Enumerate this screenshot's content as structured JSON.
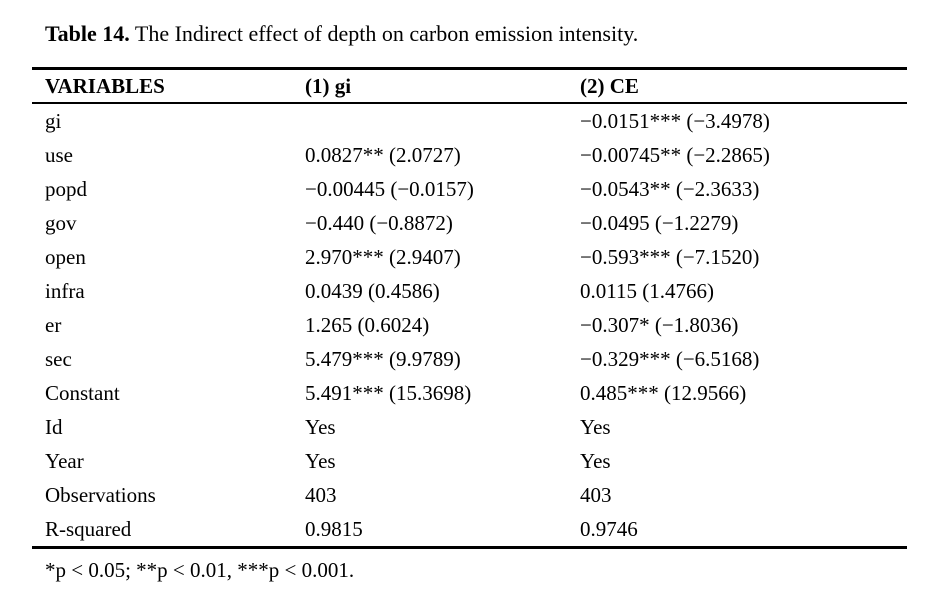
{
  "page": {
    "background_color": "#ffffff",
    "text_color": "#000000"
  },
  "title": {
    "label": "Table 14.",
    "caption": " The Indirect effect of depth on carbon emission intensity."
  },
  "table": {
    "columns": [
      "VARIABLES",
      "(1) gi",
      "(2) CE"
    ],
    "rows": [
      {
        "variable": "gi",
        "gi": "",
        "ce": "−0.0151*** (−3.4978)"
      },
      {
        "variable": "use",
        "gi": "0.0827** (2.0727)",
        "ce": "−0.00745** (−2.2865)"
      },
      {
        "variable": "popd",
        "gi": "−0.00445 (−0.0157)",
        "ce": "−0.0543** (−2.3633)"
      },
      {
        "variable": "gov",
        "gi": "−0.440 (−0.8872)",
        "ce": "−0.0495 (−1.2279)"
      },
      {
        "variable": "open",
        "gi": "2.970*** (2.9407)",
        "ce": "−0.593*** (−7.1520)"
      },
      {
        "variable": "infra",
        "gi": "0.0439 (0.4586)",
        "ce": "0.0115 (1.4766)"
      },
      {
        "variable": "er",
        "gi": "1.265 (0.6024)",
        "ce": "−0.307* (−1.8036)"
      },
      {
        "variable": "sec",
        "gi": "5.479*** (9.9789)",
        "ce": "−0.329*** (−6.5168)"
      },
      {
        "variable": "Constant",
        "gi": "5.491*** (15.3698)",
        "ce": "0.485*** (12.9566)"
      },
      {
        "variable": "Id",
        "gi": "Yes",
        "ce": "Yes"
      },
      {
        "variable": "Year",
        "gi": "Yes",
        "ce": "Yes"
      },
      {
        "variable": "Observations",
        "gi": "403",
        "ce": "403"
      },
      {
        "variable": "R-squared",
        "gi": "0.9815",
        "ce": "0.9746"
      }
    ]
  },
  "footnote": "*p < 0.05; **p < 0.01, ***p < 0.001."
}
